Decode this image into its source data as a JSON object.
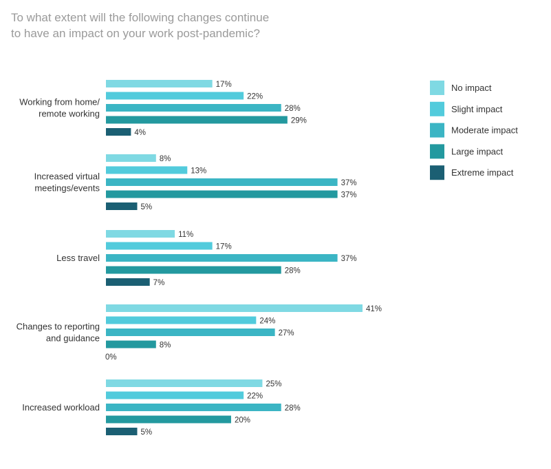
{
  "chart_data": {
    "type": "bar",
    "orientation": "horizontal",
    "title_lines": [
      "To what extent will the following changes continue",
      "to have an impact on your work post-pandemic?"
    ],
    "categories": [
      [
        "Working from home/",
        "remote working"
      ],
      [
        "Increased virtual",
        "meetings/events"
      ],
      [
        "Less travel"
      ],
      [
        "Changes to reporting",
        "and guidance"
      ],
      [
        "Increased workload"
      ]
    ],
    "series": [
      {
        "name": "No impact",
        "color": "#7fd9e3",
        "values": [
          17,
          8,
          11,
          41,
          25
        ]
      },
      {
        "name": "Slight impact",
        "color": "#52cbdc",
        "values": [
          22,
          13,
          17,
          24,
          22
        ]
      },
      {
        "name": "Moderate impact",
        "color": "#3bb5c4",
        "values": [
          28,
          37,
          37,
          27,
          28
        ]
      },
      {
        "name": "Large impact",
        "color": "#23999f",
        "values": [
          29,
          37,
          28,
          8,
          20
        ]
      },
      {
        "name": "Extreme impact",
        "color": "#1b5f73",
        "values": [
          4,
          5,
          7,
          0,
          5
        ]
      }
    ],
    "value_suffix": "%",
    "xlim": [
      0,
      41
    ],
    "grid": false,
    "legend_position": "top-right"
  }
}
